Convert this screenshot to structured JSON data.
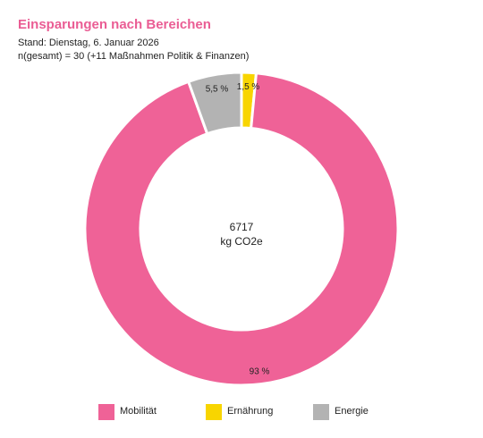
{
  "chart_data": {
    "type": "pie",
    "title": "Einsparungen nach Bereichen",
    "subtitle_lines": [
      "Stand: Dienstag, 6. Januar 2026",
      "n(gesamt) = 30 (+11 Maßnahmen Politik & Finanzen)"
    ],
    "center_value": "6717",
    "center_unit": "kg CO2e",
    "categories": [
      "Mobilität",
      "Ernährung",
      "Energie"
    ],
    "values": [
      93,
      1.5,
      5.5
    ],
    "data_labels": [
      "93 %",
      "1,5 %",
      "5,5 %"
    ],
    "colors": [
      "#ef6297",
      "#f8d500",
      "#b3b3b3"
    ],
    "legend_position": "bottom",
    "donut": true
  }
}
